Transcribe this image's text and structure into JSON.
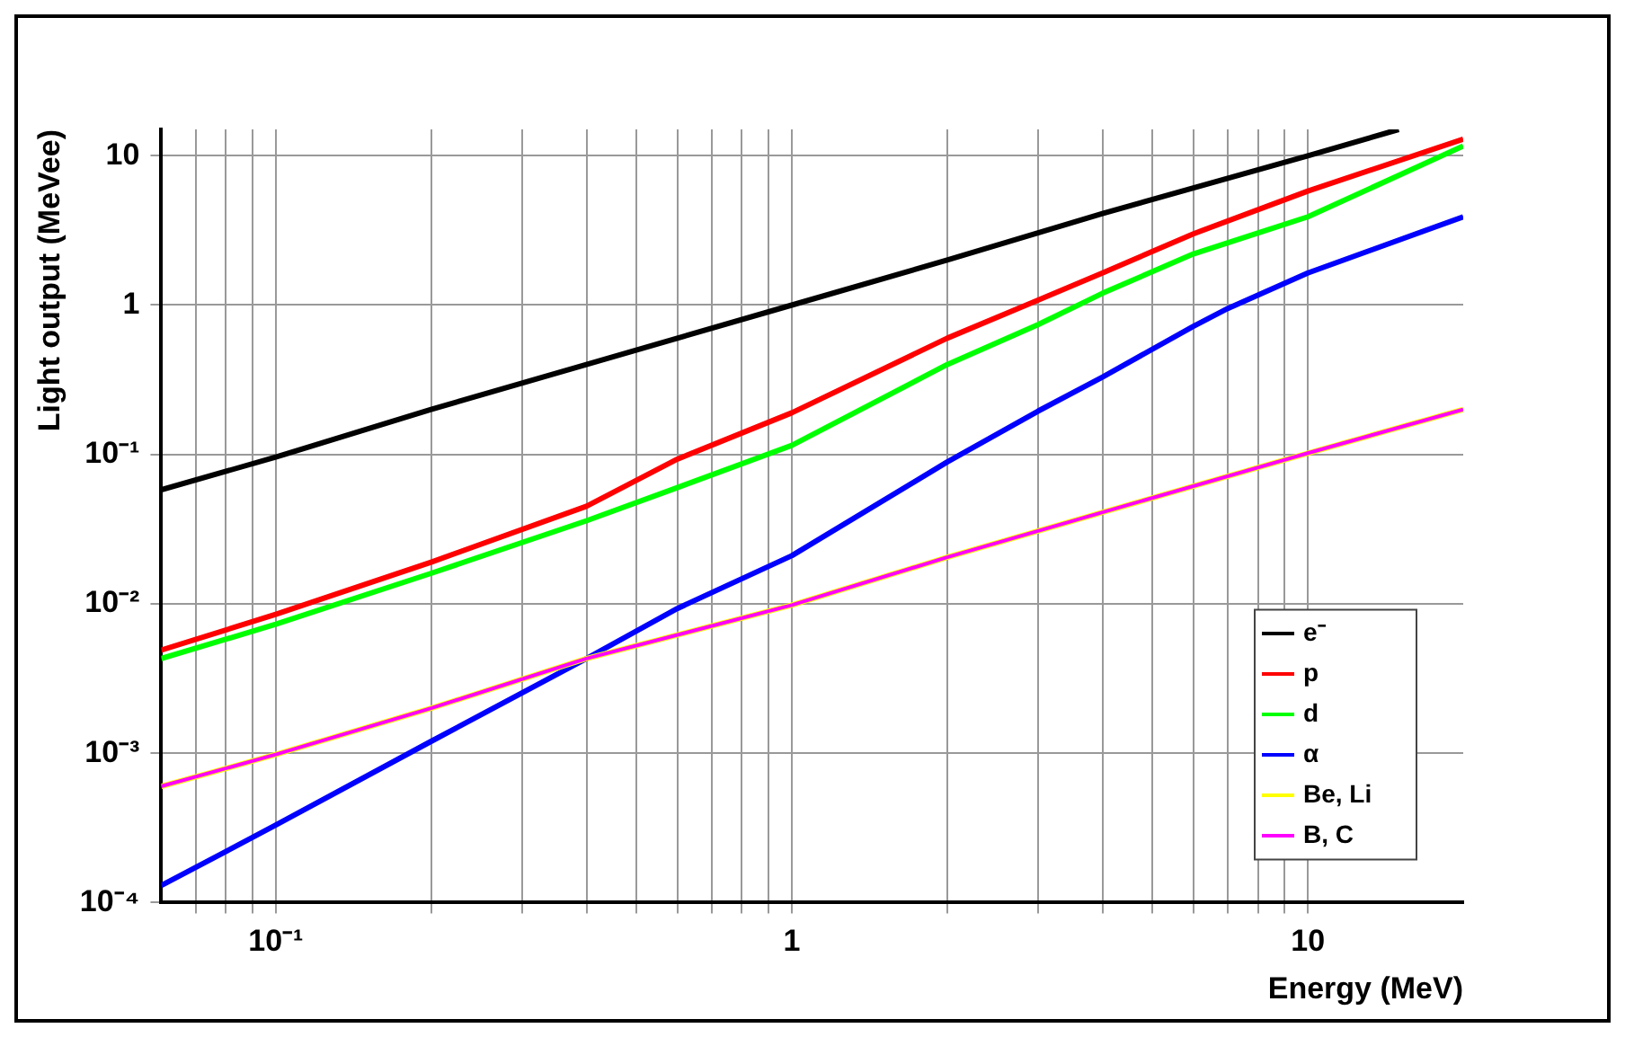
{
  "chart_data": {
    "type": "line",
    "xlabel": "Energy (MeV)",
    "ylabel": "Light output (MeVee)",
    "log": "xy",
    "grid": true,
    "legend": "bottom right",
    "marker": "none",
    "line_style": "solid",
    "xlim": [
      0.06,
      20
    ],
    "ylim": [
      0.0001,
      15
    ],
    "xticks": [
      {
        "value": 0.07,
        "label": null
      },
      {
        "value": 0.08,
        "label": null
      },
      {
        "value": 0.09,
        "label": null
      },
      {
        "value": 0.1,
        "label": "10⁻¹"
      },
      {
        "value": 0.2,
        "label": null
      },
      {
        "value": 0.3,
        "label": null
      },
      {
        "value": 0.4,
        "label": null
      },
      {
        "value": 0.5,
        "label": null
      },
      {
        "value": 0.6,
        "label": null
      },
      {
        "value": 0.7,
        "label": null
      },
      {
        "value": 0.8,
        "label": null
      },
      {
        "value": 0.9,
        "label": null
      },
      1,
      {
        "value": 2,
        "label": null
      },
      {
        "value": 3,
        "label": null
      },
      {
        "value": 4,
        "label": null
      },
      {
        "value": 5,
        "label": null
      },
      {
        "value": 6,
        "label": null
      },
      {
        "value": 7,
        "label": null
      },
      {
        "value": 8,
        "label": null
      },
      {
        "value": 9,
        "label": null
      },
      10
    ],
    "yticks": [
      {
        "value": 0.0001,
        "label": "10⁻⁴"
      },
      {
        "value": 0.001,
        "label": "10⁻³"
      },
      {
        "value": 0.01,
        "label": "10⁻²"
      },
      {
        "value": 0.1,
        "label": "10⁻¹"
      },
      1,
      10
    ],
    "series": [
      {
        "name": "e⁻",
        "color": "#000000",
        "x": [
          0.06,
          0.1,
          0.2,
          0.4,
          1,
          2,
          4,
          10,
          15
        ],
        "values": [
          0.058,
          0.096,
          0.2,
          0.4,
          1,
          2,
          4.1,
          10,
          15
        ]
      },
      {
        "name": "p",
        "color": "#ff0000",
        "x": [
          0.06,
          0.1,
          0.2,
          0.4,
          0.6,
          1,
          2,
          3,
          4,
          6,
          10,
          20
        ],
        "values": [
          0.0049,
          0.0085,
          0.019,
          0.045,
          0.093,
          0.19,
          0.6,
          1.08,
          1.64,
          3.0,
          5.8,
          12.9
        ]
      },
      {
        "name": "d",
        "color": "#00ff00",
        "x": [
          0.06,
          0.1,
          0.2,
          0.4,
          0.6,
          1,
          2,
          3,
          4,
          6,
          10,
          20
        ],
        "values": [
          0.0043,
          0.0073,
          0.016,
          0.036,
          0.06,
          0.115,
          0.4,
          0.74,
          1.2,
          2.2,
          3.9,
          11.6
        ]
      },
      {
        "name": "α",
        "color": "#0000ff",
        "x": [
          0.06,
          0.1,
          0.2,
          0.4,
          0.6,
          1,
          2,
          3,
          4,
          6,
          7,
          10,
          20
        ],
        "values": [
          0.00013,
          0.00033,
          0.0012,
          0.0043,
          0.0093,
          0.021,
          0.089,
          0.195,
          0.33,
          0.72,
          0.95,
          1.64,
          3.9
        ]
      },
      {
        "name": "Be, Li",
        "color": "#ffff00",
        "x": [
          0.06,
          0.1,
          0.2,
          0.4,
          1,
          2,
          4,
          10,
          20
        ],
        "values": [
          0.0006,
          0.00098,
          0.002,
          0.0043,
          0.0098,
          0.0205,
          0.041,
          0.102,
          0.2
        ]
      },
      {
        "name": "B, C",
        "color": "#ff00ff",
        "x": [
          0.06,
          0.1,
          0.2,
          0.4,
          1,
          2,
          4,
          10,
          20
        ],
        "values": [
          0.0006,
          0.00098,
          0.002,
          0.0043,
          0.0098,
          0.0205,
          0.041,
          0.102,
          0.2
        ]
      }
    ]
  }
}
